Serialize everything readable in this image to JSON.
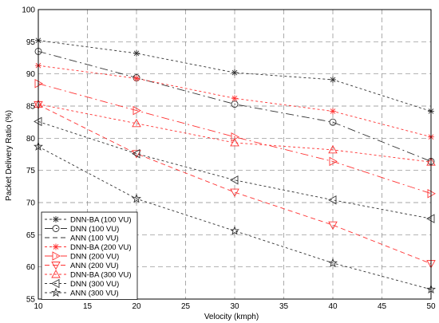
{
  "chart_data": {
    "type": "line",
    "title": "",
    "xlabel": "Velocity (kmph)",
    "ylabel": "Packet Delivery Ratio (%)",
    "xlim": [
      10,
      50
    ],
    "ylim": [
      55,
      100
    ],
    "xticks": [
      10,
      15,
      20,
      25,
      30,
      35,
      40,
      45,
      50
    ],
    "yticks": [
      55,
      60,
      65,
      70,
      75,
      80,
      85,
      90,
      95,
      100
    ],
    "grid": true,
    "legend_position": "bottom-left",
    "x": [
      10,
      20,
      30,
      40,
      50
    ],
    "series": [
      {
        "name": "DNN-BA (100 VU)",
        "color": "#333333",
        "marker": "asterisk",
        "dash": "3,3",
        "values": [
          95.2,
          93.2,
          90.2,
          89.1,
          84.2
        ]
      },
      {
        "name": "DNN (100 VU)",
        "color": "#333333",
        "marker": "circle",
        "dash": "10,4,2,4",
        "values": [
          93.5,
          89.4,
          85.3,
          82.5,
          76.4
        ]
      },
      {
        "name": "ANN (100 VU)",
        "color": "#333333",
        "marker": "none",
        "dash": "6,4",
        "values": [
          90.2,
          null,
          null,
          null,
          null
        ]
      },
      {
        "name": "DNN-BA (200 VU)",
        "color": "#ff3333",
        "marker": "asterisk",
        "dash": "3,3",
        "values": [
          91.3,
          89.3,
          86.2,
          84.2,
          80.2
        ]
      },
      {
        "name": "DNN (200 VU)",
        "color": "#ff3333",
        "marker": "triangle-right",
        "dash": "10,4,2,4",
        "values": [
          88.5,
          84.3,
          80.2,
          76.4,
          71.4
        ]
      },
      {
        "name": "ANN (200 VU)",
        "color": "#ff3333",
        "marker": "triangle-down",
        "dash": "6,4",
        "values": [
          85.2,
          77.6,
          71.6,
          66.5,
          60.5
        ]
      },
      {
        "name": "DNN-BA (300 VU)",
        "color": "#ff3333",
        "marker": "triangle-up",
        "dash": "3,3",
        "values": [
          85.3,
          82.3,
          79.3,
          78.2,
          76.3
        ]
      },
      {
        "name": "DNN (300 VU)",
        "color": "#333333",
        "marker": "triangle-left",
        "dash": "3,3",
        "values": [
          82.6,
          77.6,
          73.5,
          70.4,
          67.5
        ]
      },
      {
        "name": "ANN (300 VU)",
        "color": "#333333",
        "marker": "star",
        "dash": "3,3",
        "values": [
          78.7,
          70.6,
          65.6,
          60.6,
          56.5
        ]
      }
    ]
  }
}
